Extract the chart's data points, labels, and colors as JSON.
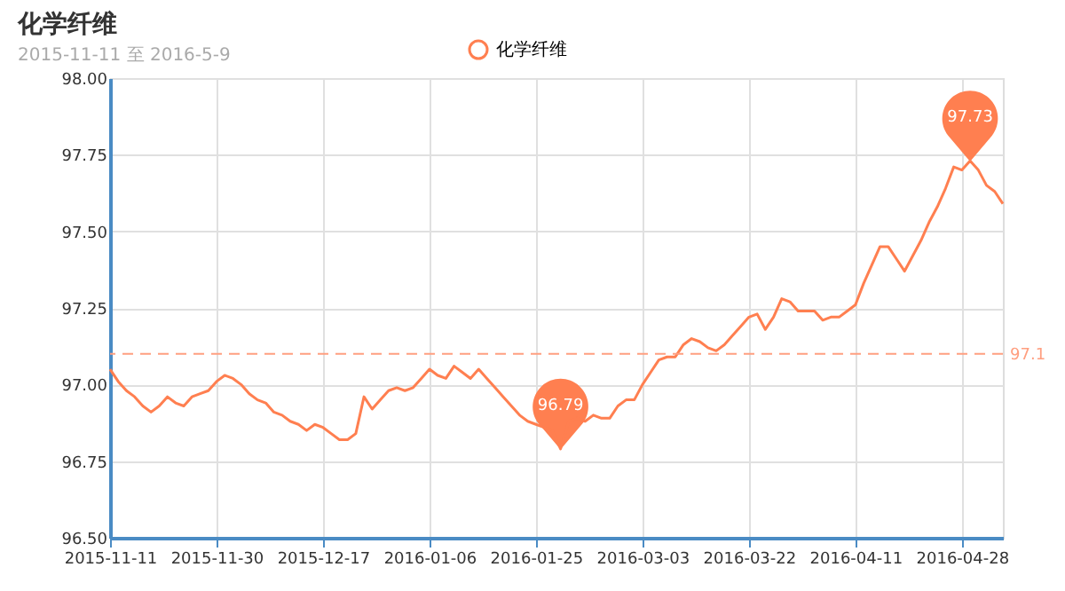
{
  "chart_data": {
    "type": "line",
    "title": "化学纤维",
    "subtitle": "2015-11-11 至 2016-5-9",
    "categories": [
      "2015-11-11",
      null,
      null,
      null,
      null,
      null,
      null,
      null,
      null,
      null,
      null,
      null,
      null,
      "2015-11-30",
      null,
      null,
      null,
      null,
      null,
      null,
      null,
      null,
      null,
      null,
      null,
      null,
      "2015-12-17",
      null,
      null,
      null,
      null,
      null,
      null,
      null,
      null,
      null,
      null,
      null,
      null,
      "2016-01-06",
      null,
      null,
      null,
      null,
      null,
      null,
      null,
      null,
      null,
      null,
      null,
      null,
      "2016-01-25",
      null,
      null,
      null,
      null,
      null,
      null,
      null,
      null,
      null,
      null,
      null,
      null,
      "2016-03-03",
      null,
      null,
      null,
      null,
      null,
      null,
      null,
      null,
      null,
      null,
      null,
      null,
      "2016-03-22",
      null,
      null,
      null,
      null,
      null,
      null,
      null,
      null,
      null,
      null,
      null,
      null,
      "2016-04-11",
      null,
      null,
      null,
      null,
      null,
      null,
      null,
      null,
      null,
      null,
      null,
      null,
      "2016-04-28",
      null,
      null,
      null,
      null,
      null
    ],
    "series": [
      {
        "name": "化学纤维",
        "color": "#ff7f50",
        "values": [
          97.05,
          97.01,
          96.98,
          96.96,
          96.93,
          96.91,
          96.93,
          96.96,
          96.94,
          96.93,
          96.96,
          96.97,
          96.98,
          97.01,
          97.03,
          97.02,
          97.0,
          96.97,
          96.95,
          96.94,
          96.91,
          96.9,
          96.88,
          96.87,
          96.85,
          96.87,
          96.86,
          96.84,
          96.82,
          96.82,
          96.84,
          96.96,
          96.92,
          96.95,
          96.98,
          96.99,
          96.98,
          96.99,
          97.02,
          97.05,
          97.03,
          97.02,
          97.06,
          97.04,
          97.02,
          97.05,
          97.02,
          96.99,
          96.96,
          96.93,
          96.9,
          96.88,
          96.87,
          96.86,
          96.85,
          96.79,
          96.88,
          96.89,
          96.88,
          96.9,
          96.89,
          96.89,
          96.93,
          96.95,
          96.95,
          97.0,
          97.04,
          97.08,
          97.09,
          97.09,
          97.13,
          97.15,
          97.14,
          97.12,
          97.11,
          97.13,
          97.16,
          97.19,
          97.22,
          97.23,
          97.18,
          97.22,
          97.28,
          97.27,
          97.24,
          97.24,
          97.24,
          97.21,
          97.22,
          97.22,
          97.24,
          97.26,
          97.33,
          97.39,
          97.45,
          97.45,
          97.41,
          97.37,
          97.42,
          97.47,
          97.53,
          97.58,
          97.64,
          97.71,
          97.7,
          97.73,
          97.7,
          97.65,
          97.63,
          97.59
        ]
      }
    ],
    "ylim": [
      96.5,
      98
    ],
    "yticks": [
      {
        "value": 96.5,
        "label": "96.50"
      },
      {
        "value": 96.75,
        "label": "96.75"
      },
      {
        "value": 97,
        "label": "97.00"
      },
      {
        "value": 97.25,
        "label": "97.25"
      },
      {
        "value": 97.5,
        "label": "97.50"
      },
      {
        "value": 97.75,
        "label": "97.75"
      },
      {
        "value": 98,
        "label": "98.00"
      }
    ],
    "grid": true,
    "legend": "top",
    "marker": "none",
    "line_style": "solid",
    "ref_lines": [
      {
        "axis": "y",
        "value": 97.1,
        "label": "97.1",
        "line_style": "dashed",
        "color": "#ff9f80"
      }
    ],
    "annotations": [
      {
        "text": "96.79",
        "y": 96.79
      },
      {
        "text": "97.73",
        "y": 97.73
      }
    ]
  }
}
